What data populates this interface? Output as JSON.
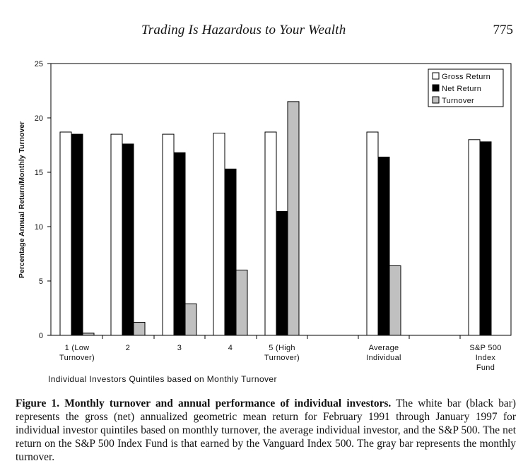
{
  "header": {
    "running_title": "Trading Is Hazardous to Your Wealth",
    "page_number": "775"
  },
  "chart_data": {
    "type": "bar",
    "title": "",
    "xlabel": "Individual Investors Quintiles based on Monthly Turnover",
    "ylabel": "Percentage Annual Return/Monthly Turnover",
    "ylim": [
      0,
      25
    ],
    "yticks": [
      0,
      5,
      10,
      15,
      20,
      25
    ],
    "grid": false,
    "legend_position": "top-right",
    "categories": [
      [
        "1 (Low",
        "Turnover)"
      ],
      [
        "2"
      ],
      [
        "3"
      ],
      [
        "4"
      ],
      [
        "5 (High",
        "Turnover)"
      ],
      [
        "Average",
        "Individual"
      ],
      [
        "S&P 500",
        "Index",
        "Fund"
      ]
    ],
    "series": [
      {
        "name": "Gross Return",
        "color": "#ffffff",
        "values": [
          18.7,
          18.5,
          18.5,
          18.6,
          18.7,
          18.7,
          18.0
        ]
      },
      {
        "name": "Net Return",
        "color": "#000000",
        "values": [
          18.5,
          17.6,
          16.8,
          15.3,
          11.4,
          16.4,
          17.8
        ]
      },
      {
        "name": "Turnover",
        "color": "#c0c0c0",
        "values": [
          0.2,
          1.2,
          2.9,
          6.0,
          21.5,
          6.4,
          null
        ]
      }
    ]
  },
  "caption": {
    "label": "Figure 1. Monthly turnover and annual performance of individual investors.",
    "text": " The white bar (black bar) represents the gross (net) annualized geometric mean return for February 1991 through January 1997 for individual investor quintiles based on monthly turnover, the average individual investor, and the S&P 500. The net return on the S&P 500 Index Fund is that earned by the Vanguard Index 500. The gray bar represents the monthly turnover."
  }
}
